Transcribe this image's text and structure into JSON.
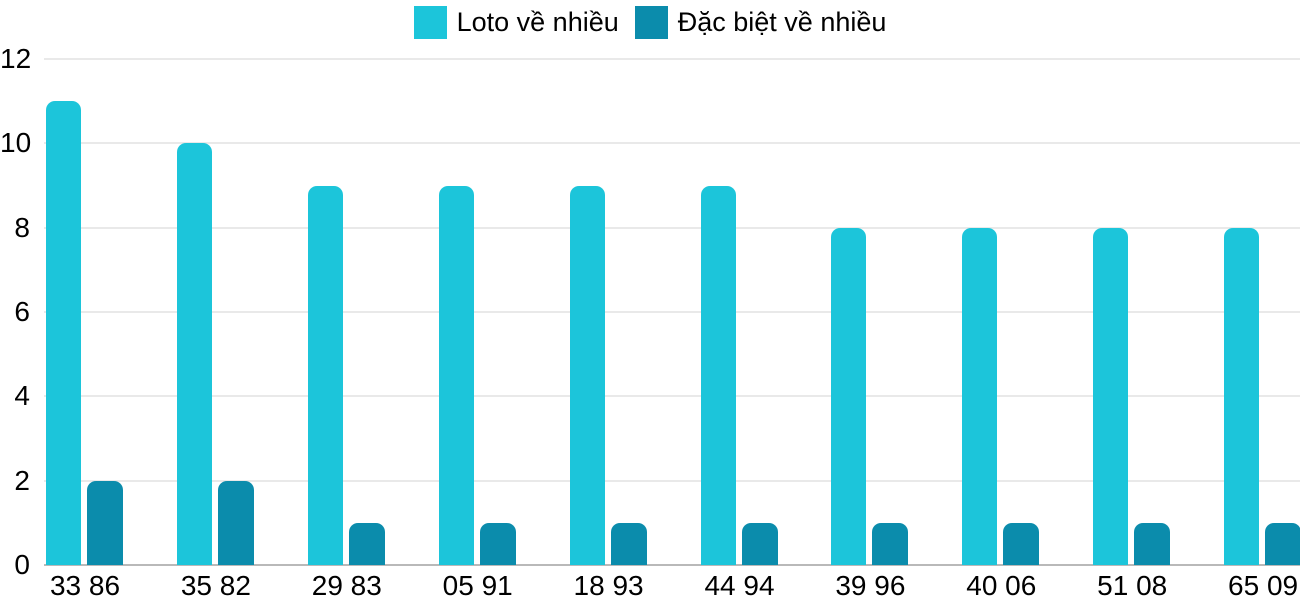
{
  "chart_data": {
    "type": "bar",
    "title": "",
    "xlabel": "",
    "ylabel": "",
    "categories": [
      "33 86",
      "35 82",
      "29 83",
      "05 91",
      "18 93",
      "44 94",
      "39 96",
      "40 06",
      "51 08",
      "65 09"
    ],
    "series": [
      {
        "name": "Loto về nhiều",
        "color": "#1cc5da",
        "values": [
          11,
          10,
          9,
          9,
          9,
          9,
          8,
          8,
          8,
          8
        ]
      },
      {
        "name": "Đặc biệt về nhiều",
        "color": "#0b8cac",
        "values": [
          2,
          2,
          1,
          1,
          1,
          1,
          1,
          1,
          1,
          1
        ]
      }
    ],
    "ylim": [
      0,
      12
    ],
    "yticks": [
      0,
      2,
      4,
      6,
      8,
      10,
      12
    ],
    "grid": true,
    "legend_position": "top-center"
  },
  "colors": {
    "series_light": "#1cc5da",
    "series_dark": "#0b8cac",
    "gridline": "#e9e9e9",
    "axis_line": "#b9b9b9",
    "text": "#000000",
    "background": "#ffffff"
  }
}
